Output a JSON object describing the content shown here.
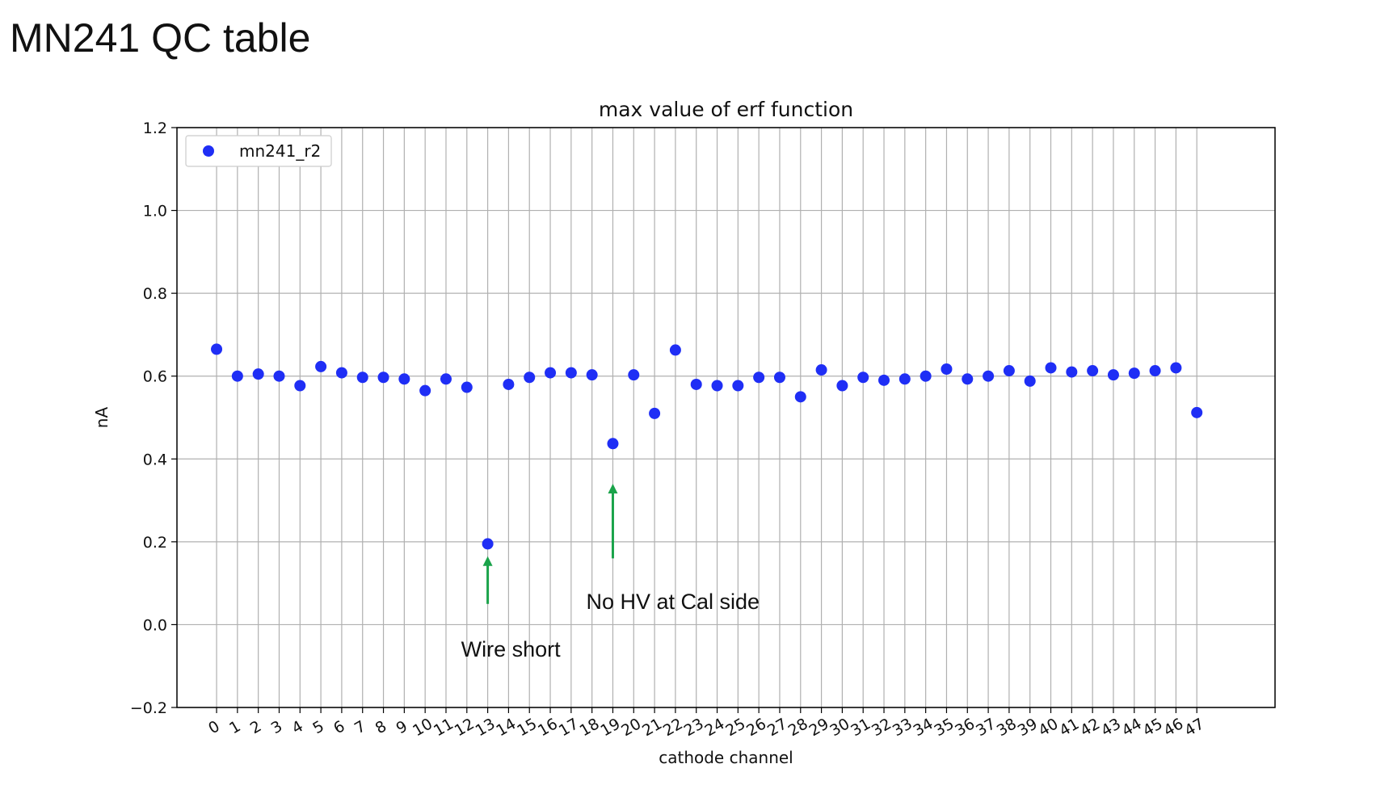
{
  "slide": {
    "title": "MN241 QC table"
  },
  "chart_data": {
    "type": "scatter",
    "title": "max value of erf function",
    "xlabel": "cathode channel",
    "ylabel": "nA",
    "ylim": [
      -0.2,
      1.2
    ],
    "yticks": [
      -0.2,
      0.0,
      0.2,
      0.4,
      0.6,
      0.8,
      1.0,
      1.2
    ],
    "ytick_labels": [
      "−0.2",
      "0.0",
      "0.2",
      "0.4",
      "0.6",
      "0.8",
      "1.0",
      "1.2"
    ],
    "x": [
      0,
      1,
      2,
      3,
      4,
      5,
      6,
      7,
      8,
      9,
      10,
      11,
      12,
      13,
      14,
      15,
      16,
      17,
      18,
      19,
      20,
      21,
      22,
      23,
      24,
      25,
      26,
      27,
      28,
      29,
      30,
      31,
      32,
      33,
      34,
      35,
      36,
      37,
      38,
      39,
      40,
      41,
      42,
      43,
      44,
      45,
      46,
      47
    ],
    "xtick_labels": [
      "0",
      "1",
      "2",
      "3",
      "4",
      "5",
      "6",
      "7",
      "8",
      "9",
      "10",
      "11",
      "12",
      "13",
      "14",
      "15",
      "16",
      "17",
      "18",
      "19",
      "20",
      "21",
      "22",
      "23",
      "24",
      "25",
      "26",
      "27",
      "28",
      "29",
      "30",
      "31",
      "32",
      "33",
      "34",
      "35",
      "36",
      "37",
      "38",
      "39",
      "40",
      "41",
      "42",
      "43",
      "44",
      "45",
      "46",
      "47"
    ],
    "grid": true,
    "legend_position": "top-left",
    "series": [
      {
        "name": "mn241_r2",
        "color": "#1f2ef5",
        "y": [
          0.665,
          0.6,
          0.605,
          0.6,
          0.577,
          0.623,
          0.608,
          0.597,
          0.597,
          0.593,
          0.565,
          0.593,
          0.573,
          0.195,
          0.58,
          0.597,
          0.608,
          0.608,
          0.603,
          0.437,
          0.603,
          0.51,
          0.663,
          0.58,
          0.577,
          0.577,
          0.597,
          0.597,
          0.55,
          0.615,
          0.577,
          0.597,
          0.59,
          0.593,
          0.6,
          0.617,
          0.593,
          0.6,
          0.613,
          0.588,
          0.62,
          0.61,
          0.613,
          0.603,
          0.607,
          0.613,
          0.62,
          0.512
        ]
      }
    ],
    "annotations": [
      {
        "text": "Wire short",
        "x": 13,
        "arrow_from_y": 0.05,
        "arrow_to_y": 0.165,
        "text_y": -0.06,
        "color": "#1aa34a"
      },
      {
        "text": "No HV at Cal side",
        "x": 19,
        "arrow_from_y": 0.16,
        "arrow_to_y": 0.34,
        "text_y": 0.055,
        "color": "#1aa34a"
      }
    ]
  }
}
